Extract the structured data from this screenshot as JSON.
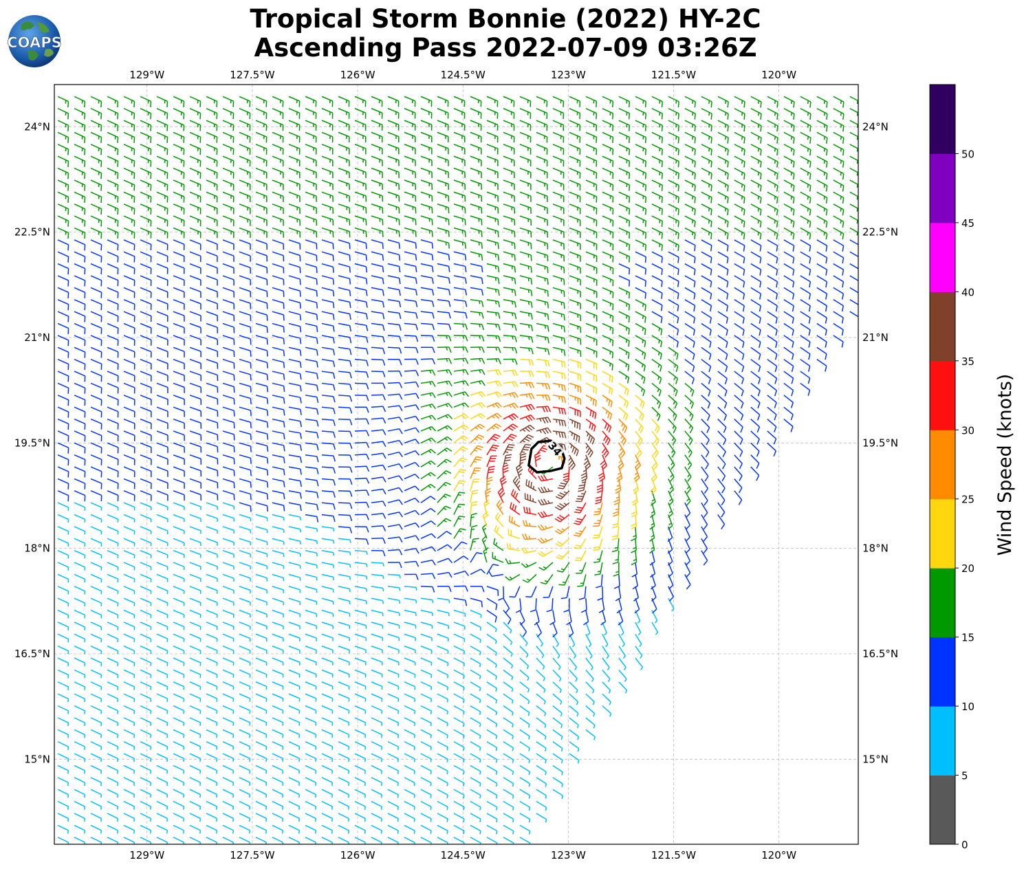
{
  "figure": {
    "title_line1": "Tropical Storm Bonnie (2022) HY-2C",
    "title_line2": "Ascending Pass 2022-07-09 03:26Z",
    "logo_text": "COAPS"
  },
  "map": {
    "lon_ticks": [
      "129°W",
      "127.5°W",
      "126°W",
      "124.5°W",
      "123°W",
      "121.5°W",
      "120°W"
    ],
    "lat_ticks": [
      "24°N",
      "22.5°N",
      "21°N",
      "19.5°N",
      "18°N",
      "16.5°N",
      "15°N"
    ],
    "lon_range": [
      -130.32,
      -118.87
    ],
    "lat_range": [
      13.79,
      24.6
    ],
    "storm_center": {
      "lon": -123.25,
      "lat": 19.2
    },
    "contour_label": "34",
    "grid": "dashed"
  },
  "colorbar": {
    "label": "Wind Speed (knots)",
    "ticks": [
      "0",
      "5",
      "10",
      "15",
      "20",
      "25",
      "30",
      "35",
      "40",
      "45",
      "50"
    ],
    "bins": [
      {
        "min": 0,
        "max": 5,
        "color": "#595959"
      },
      {
        "min": 5,
        "max": 10,
        "color": "#00bfff"
      },
      {
        "min": 10,
        "max": 15,
        "color": "#0033ff"
      },
      {
        "min": 15,
        "max": 20,
        "color": "#009900"
      },
      {
        "min": 20,
        "max": 25,
        "color": "#ffd70f"
      },
      {
        "min": 25,
        "max": 30,
        "color": "#ff8c00"
      },
      {
        "min": 30,
        "max": 35,
        "color": "#ff1010"
      },
      {
        "min": 35,
        "max": 40,
        "color": "#80402a"
      },
      {
        "min": 40,
        "max": 45,
        "color": "#ff00ff"
      },
      {
        "min": 45,
        "max": 50,
        "color": "#8000c0"
      },
      {
        "min": 50,
        "max": 55,
        "color": "#2f005f"
      }
    ]
  }
}
